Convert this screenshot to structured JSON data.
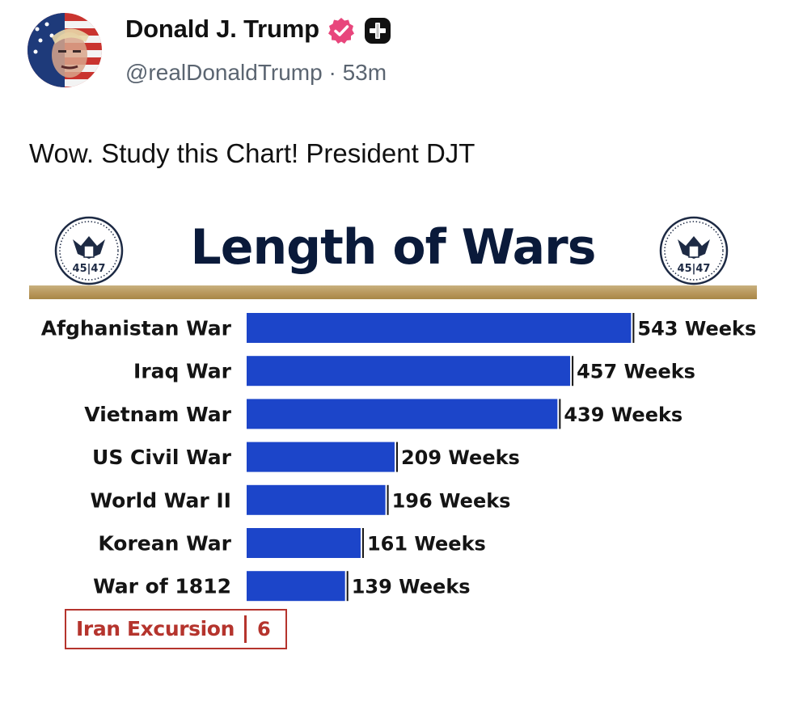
{
  "author": {
    "name": "Donald J. Trump",
    "handle": "@realDonaldTrump",
    "separator": "·",
    "time": "53m",
    "verified_icon": "verified-badge-icon",
    "extra_badge_icon": "plus-badge-icon",
    "badge_color": "#e8467c"
  },
  "post": {
    "text": "Wow. Study this Chart! President DJT"
  },
  "seal_text": "45|47",
  "chart_data": {
    "type": "bar",
    "orientation": "horizontal",
    "title": "Length of Wars",
    "categories": [
      "Afghanistan War",
      "Iraq War",
      "Vietnam War",
      "US Civil War",
      "World War II",
      "Korean War",
      "War of 1812"
    ],
    "values": [
      543,
      457,
      439,
      209,
      196,
      161,
      139
    ],
    "value_labels": [
      "543 Weeks",
      "457 Weeks",
      "439 Weeks",
      "209 Weeks",
      "196 Weeks",
      "161 Weeks",
      "139 Weeks"
    ],
    "bar_color": "#1c45c9",
    "highlight": {
      "category": "Iran Excursion",
      "value": 6,
      "value_label": "6",
      "color": "#b5342d"
    },
    "xlabel": "",
    "ylabel": "",
    "grid": false
  }
}
